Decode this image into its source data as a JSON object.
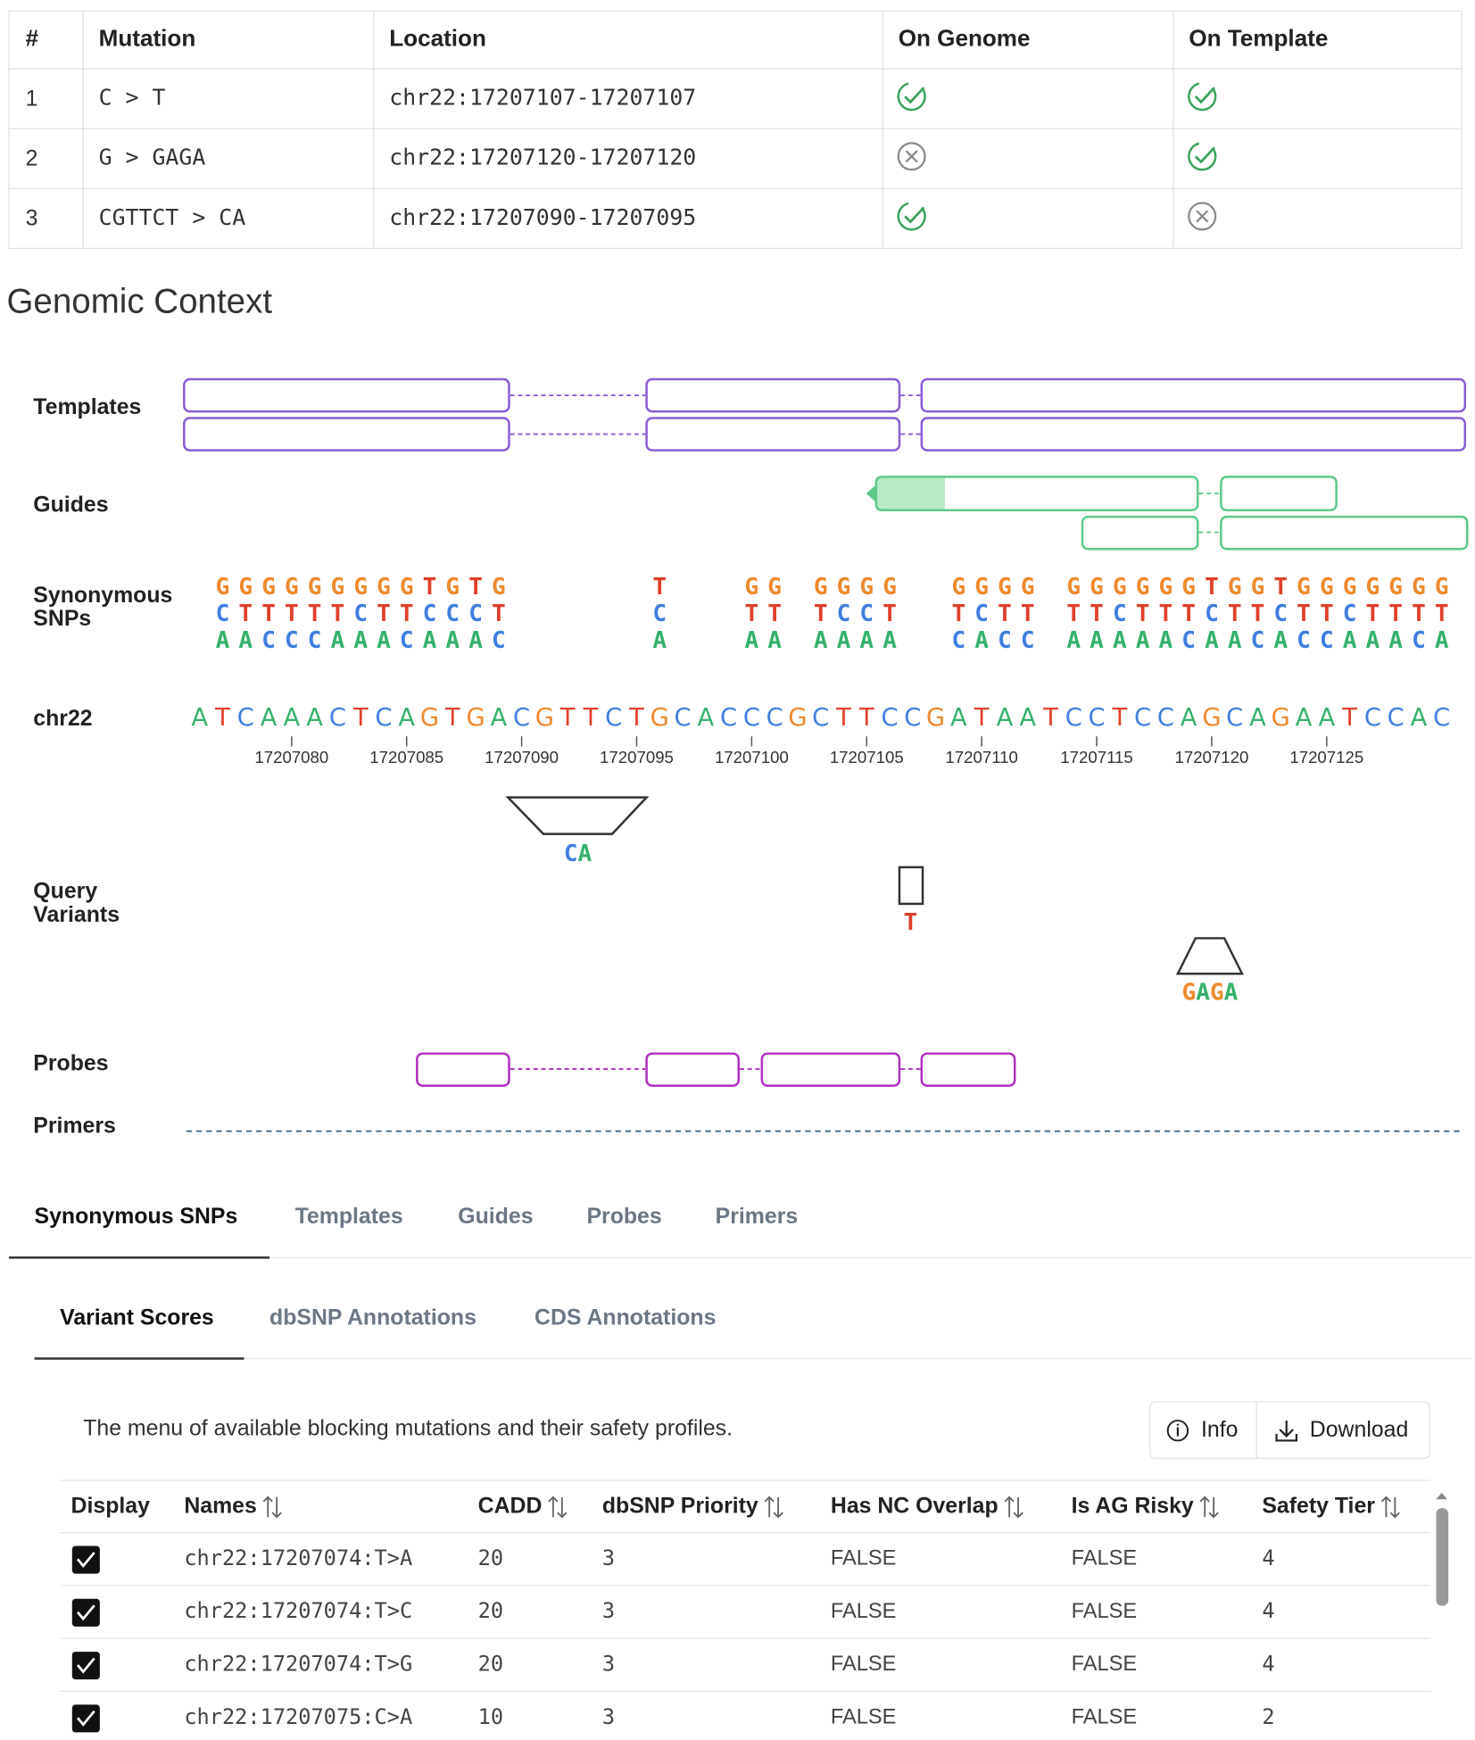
{
  "mutations_table": {
    "headers": [
      "#",
      "Mutation",
      "Location",
      "On Genome",
      "On Template"
    ],
    "rows": [
      {
        "id": "1",
        "mutation": "C > T",
        "location": "chr22:17207107-17207107",
        "on_genome": true,
        "on_template": true
      },
      {
        "id": "2",
        "mutation": "G > GAGA",
        "location": "chr22:17207120-17207120",
        "on_genome": false,
        "on_template": true
      },
      {
        "id": "3",
        "mutation": "CGTTCT > CA",
        "location": "chr22:17207090-17207095",
        "on_genome": true,
        "on_template": false
      }
    ]
  },
  "genomic_context": {
    "title": "Genomic Context",
    "track_labels": {
      "templates": "Templates",
      "guides": "Guides",
      "synonymous_snps": "Synonymous SNPs",
      "chr22": "chr22",
      "query_variants": "Query Variants",
      "probes": "Probes",
      "primers": "Primers"
    },
    "sequence": [
      "A",
      "T",
      "C",
      "A",
      "A",
      "A",
      "C",
      "T",
      "C",
      "A",
      "G",
      "T",
      "G",
      "A",
      "C",
      "G",
      "T",
      "T",
      "C",
      "T",
      "G",
      "C",
      "A",
      "C",
      "C",
      "C",
      "G",
      "C",
      "T",
      "T",
      "C",
      "C",
      "G",
      "A",
      "T",
      "A",
      "A",
      "T",
      "C",
      "C",
      "T",
      "C",
      "C",
      "A",
      "G",
      "C",
      "A",
      "G",
      "A",
      "A",
      "T",
      "C",
      "C",
      "A",
      "C"
    ],
    "xlim": [
      17207076,
      17207130
    ],
    "xticks": [
      17207080,
      17207085,
      17207090,
      17207095,
      17207100,
      17207105,
      17207110,
      17207115,
      17207120,
      17207125
    ],
    "synonymous_snps": [
      null,
      [
        "G",
        "C",
        "A"
      ],
      [
        "G",
        "T",
        "A"
      ],
      [
        "G",
        "T",
        "C"
      ],
      [
        "G",
        "T",
        "C"
      ],
      [
        "G",
        "T",
        "C"
      ],
      [
        "G",
        "T",
        "A"
      ],
      [
        "G",
        "C",
        "A"
      ],
      [
        "G",
        "T",
        "A"
      ],
      [
        "G",
        "T",
        "C"
      ],
      [
        "T",
        "C",
        "A"
      ],
      [
        "G",
        "C",
        "A"
      ],
      [
        "T",
        "C",
        "A"
      ],
      [
        "G",
        "T",
        "C"
      ],
      null,
      null,
      null,
      null,
      null,
      null,
      [
        "T",
        "C",
        "A"
      ],
      null,
      null,
      null,
      [
        "G",
        "T",
        "A"
      ],
      [
        "G",
        "T",
        "A"
      ],
      null,
      [
        "G",
        "T",
        "A"
      ],
      [
        "G",
        "C",
        "A"
      ],
      [
        "G",
        "C",
        "A"
      ],
      [
        "G",
        "T",
        "A"
      ],
      null,
      null,
      [
        "G",
        "T",
        "C"
      ],
      [
        "G",
        "C",
        "A"
      ],
      [
        "G",
        "T",
        "C"
      ],
      [
        "G",
        "T",
        "C"
      ],
      null,
      [
        "G",
        "T",
        "A"
      ],
      [
        "G",
        "T",
        "A"
      ],
      [
        "G",
        "C",
        "A"
      ],
      [
        "G",
        "T",
        "A"
      ],
      [
        "G",
        "T",
        "A"
      ],
      [
        "G",
        "T",
        "C"
      ],
      [
        "T",
        "C",
        "A"
      ],
      [
        "G",
        "T",
        "A"
      ],
      [
        "G",
        "T",
        "C"
      ],
      [
        "T",
        "C",
        "A"
      ],
      [
        "G",
        "T",
        "C"
      ],
      [
        "G",
        "T",
        "C"
      ],
      [
        "G",
        "C",
        "A"
      ],
      [
        "G",
        "T",
        "A"
      ],
      [
        "G",
        "T",
        "A"
      ],
      [
        "G",
        "T",
        "C"
      ],
      [
        "G",
        "T",
        "A"
      ]
    ],
    "query_variants": [
      {
        "alt": "CA"
      },
      {
        "alt": "T"
      },
      {
        "alt": "GAGA"
      }
    ]
  },
  "tabs": {
    "items": [
      "Synonymous SNPs",
      "Templates",
      "Guides",
      "Probes",
      "Primers"
    ],
    "active": 0
  },
  "subtabs": {
    "items": [
      "Variant Scores",
      "dbSNP Annotations",
      "CDS Annotations"
    ],
    "active": 0
  },
  "variant_scores": {
    "description": "The menu of available blocking mutations and their safety profiles.",
    "buttons": [
      "Info",
      "Download"
    ],
    "headers": [
      "Display",
      "Names",
      "CADD",
      "dbSNP Priority",
      "Has NC Overlap",
      "Is AG Risky",
      "Safety Tier"
    ],
    "sortable": [
      false,
      true,
      true,
      true,
      true,
      true,
      true
    ],
    "rows": [
      [
        true,
        "chr22:17207074:T>A",
        20,
        3,
        "FALSE",
        "FALSE",
        4
      ],
      [
        true,
        "chr22:17207074:T>C",
        20,
        3,
        "FALSE",
        "FALSE",
        4
      ],
      [
        true,
        "chr22:17207074:T>G",
        20,
        3,
        "FALSE",
        "FALSE",
        4
      ],
      [
        true,
        "chr22:17207075:C>A",
        10,
        3,
        "FALSE",
        "FALSE",
        2
      ]
    ]
  }
}
